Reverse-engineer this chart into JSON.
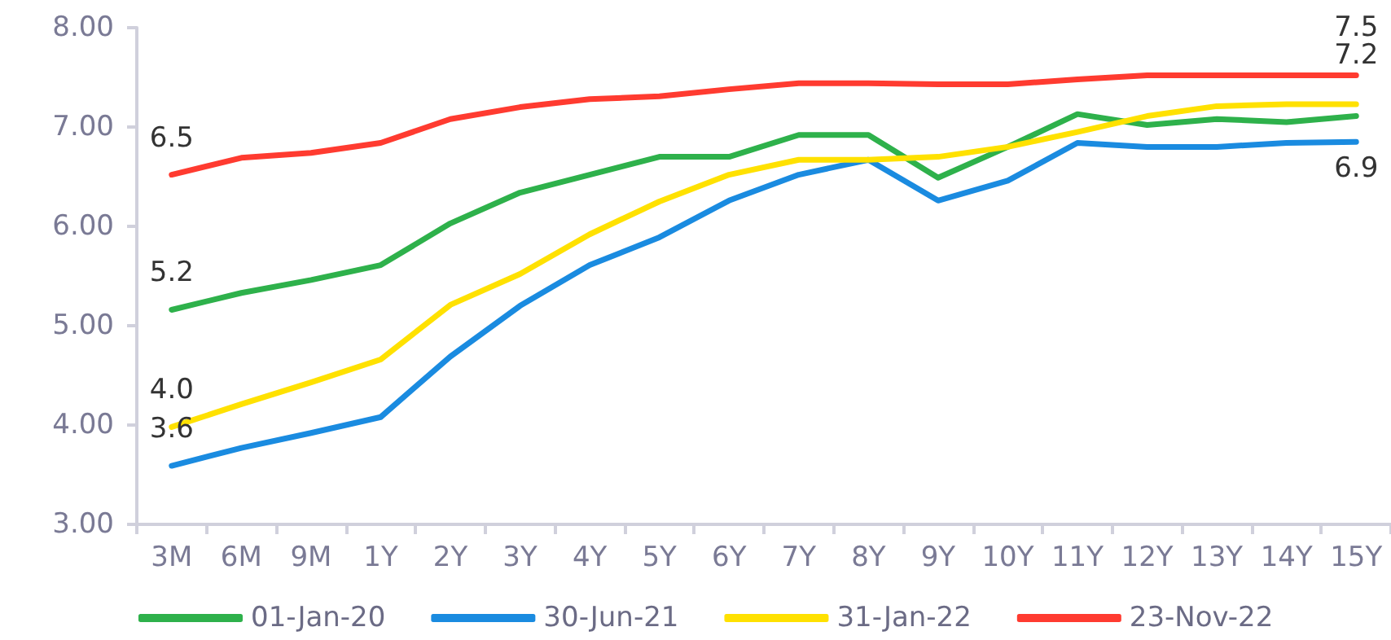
{
  "chart_data": {
    "type": "line",
    "categories": [
      "3M",
      "6M",
      "9M",
      "1Y",
      "2Y",
      "3Y",
      "4Y",
      "5Y",
      "6Y",
      "7Y",
      "8Y",
      "9Y",
      "10Y",
      "11Y",
      "12Y",
      "13Y",
      "14Y",
      "15Y"
    ],
    "series": [
      {
        "name": "01-Jan-20",
        "color": "#2eb14b",
        "values": [
          5.16,
          5.33,
          5.46,
          5.61,
          6.03,
          6.34,
          6.52,
          6.7,
          6.7,
          6.92,
          6.92,
          6.49,
          6.8,
          7.13,
          7.02,
          7.08,
          7.05,
          7.11
        ],
        "value_labels": [
          "5.2",
          null,
          null,
          null,
          null,
          null,
          null,
          null,
          null,
          null,
          null,
          null,
          null,
          null,
          null,
          null,
          null,
          null
        ]
      },
      {
        "name": "30-Jun-21",
        "color": "#1a8be0",
        "values": [
          3.59,
          3.77,
          3.92,
          4.08,
          4.69,
          5.2,
          5.61,
          5.89,
          6.26,
          6.52,
          6.67,
          6.26,
          6.46,
          6.84,
          6.8,
          6.8,
          6.84,
          6.85
        ],
        "value_labels": [
          "3.6",
          null,
          null,
          null,
          null,
          null,
          null,
          null,
          null,
          null,
          null,
          null,
          null,
          null,
          null,
          null,
          null,
          "6.9"
        ]
      },
      {
        "name": "31-Jan-22",
        "color": "#ffe100",
        "values": [
          3.98,
          4.21,
          4.43,
          4.66,
          5.21,
          5.52,
          5.92,
          6.25,
          6.52,
          6.67,
          6.67,
          6.7,
          6.8,
          6.95,
          7.11,
          7.21,
          7.23,
          7.23
        ],
        "value_labels": [
          "4.0",
          null,
          null,
          null,
          null,
          null,
          null,
          null,
          null,
          null,
          null,
          null,
          null,
          null,
          null,
          null,
          null,
          "7.2"
        ]
      },
      {
        "name": "23-Nov-22",
        "color": "#ff3b30",
        "values": [
          6.52,
          6.69,
          6.74,
          6.84,
          7.08,
          7.2,
          7.28,
          7.31,
          7.38,
          7.44,
          7.44,
          7.43,
          7.43,
          7.48,
          7.52,
          7.52,
          7.52,
          7.52
        ],
        "value_labels": [
          "6.5",
          null,
          null,
          null,
          null,
          null,
          null,
          null,
          null,
          null,
          null,
          null,
          null,
          null,
          null,
          null,
          null,
          "7.5"
        ]
      }
    ],
    "ylim": [
      3,
      8
    ],
    "yticks": [
      {
        "value": 3,
        "label": "3.00"
      },
      {
        "value": 4,
        "label": "4.00"
      },
      {
        "value": 5,
        "label": "5.00"
      },
      {
        "value": 6,
        "label": "6.00"
      },
      {
        "value": 7,
        "label": "7.00"
      },
      {
        "value": 8,
        "label": "8.00"
      }
    ],
    "legend": "bottom",
    "marker": "none",
    "line_style": "solid",
    "grid": false
  }
}
